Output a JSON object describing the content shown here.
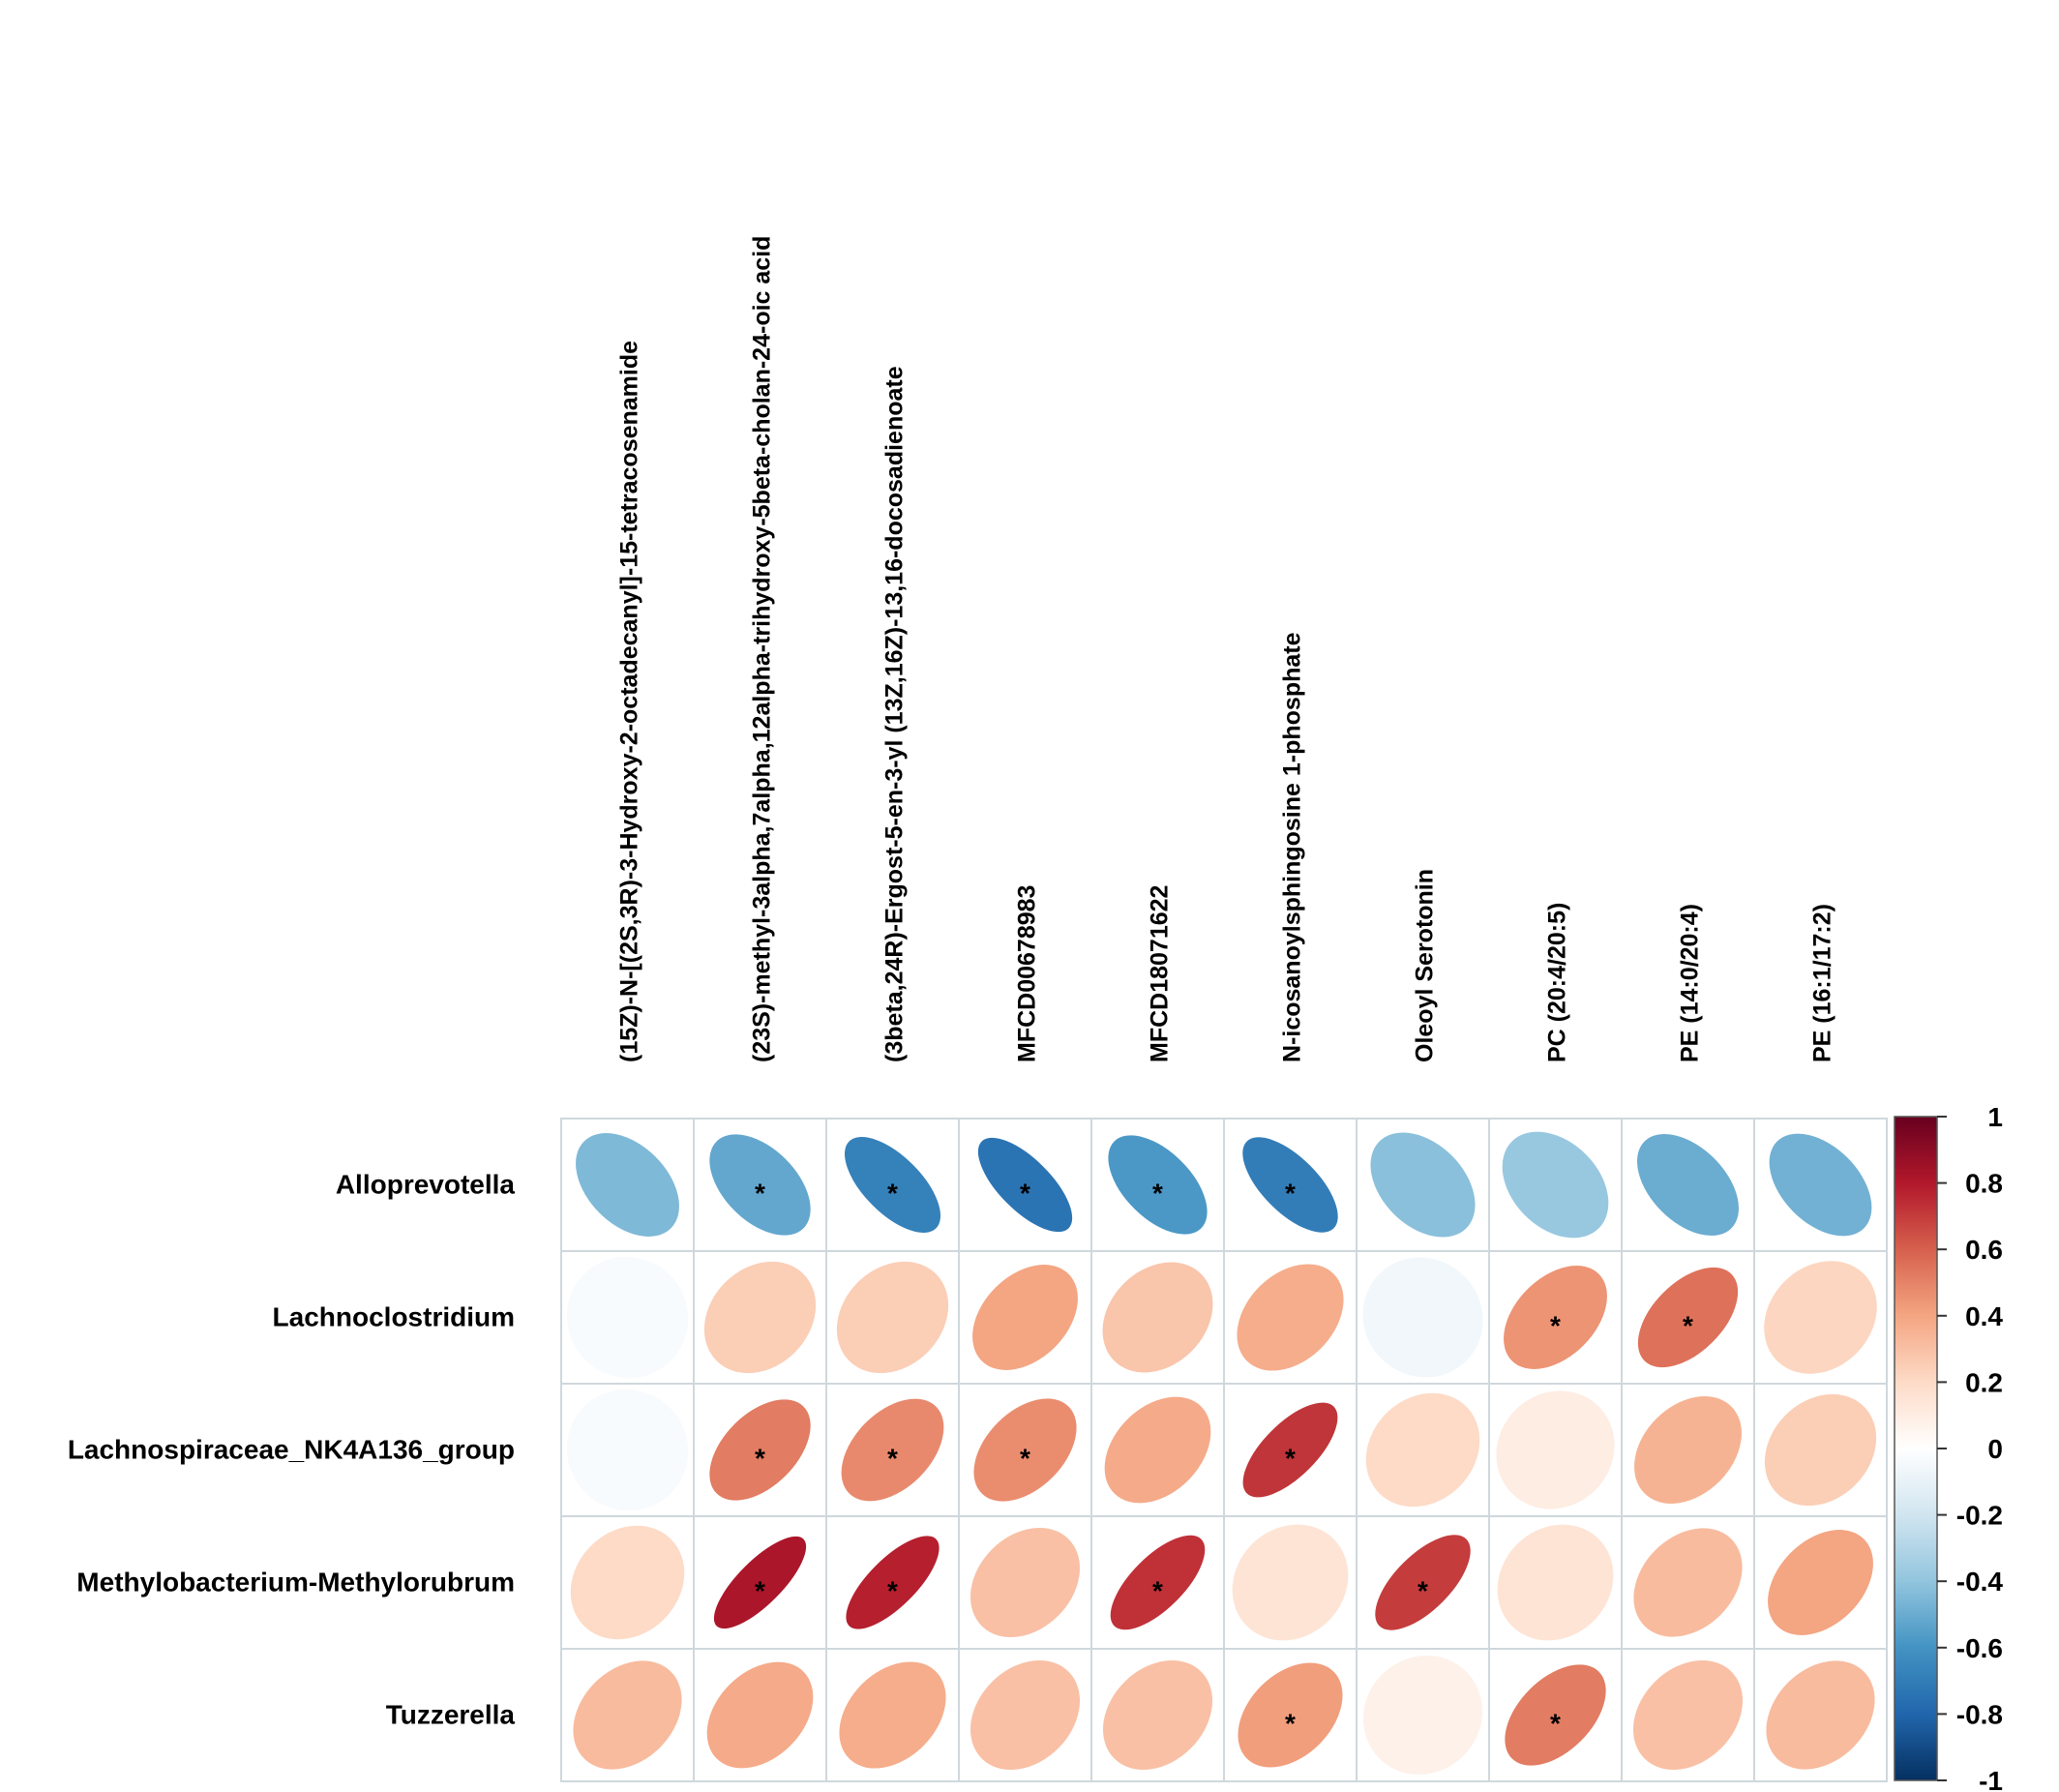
{
  "chart_data": {
    "type": "heatmap",
    "style": "correlation-ellipse",
    "columns": [
      "(15Z)-N-[(2S,3R)-3-Hydroxy-2-octadecanyl]-15-tetracosenamide",
      "(23S)-methyl-3alpha,7alpha,12alpha-trihydroxy-5beta-cholan-24-oic acid",
      "(3beta,24R)-Ergost-5-en-3-yl (13Z,16Z)-13,16-docosadienoate",
      "MFCD00678983",
      "MFCD18071622",
      "N-icosanoylsphingosine 1-phosphate",
      "Oleoyl Serotonin",
      "PC (20:4/20:5)",
      "PE (14:0/20:4)",
      "PE (16:1/17:2)"
    ],
    "rows": [
      "Alloprevotella",
      "Lachnoclostridium",
      "Lachnospiraceae_NK4A136_group",
      "Methylobacterium-Methylorubrum",
      "Tuzzerella"
    ],
    "values": [
      [
        -0.45,
        -0.52,
        -0.68,
        -0.74,
        -0.58,
        -0.7,
        -0.42,
        -0.38,
        -0.5,
        -0.48
      ],
      [
        -0.03,
        0.25,
        0.25,
        0.4,
        0.28,
        0.37,
        -0.06,
        0.45,
        0.55,
        0.22
      ],
      [
        -0.03,
        0.52,
        0.48,
        0.47,
        0.38,
        0.72,
        0.2,
        0.1,
        0.35,
        0.25
      ],
      [
        0.2,
        0.82,
        0.78,
        0.3,
        0.73,
        0.15,
        0.7,
        0.15,
        0.32,
        0.4
      ],
      [
        0.32,
        0.38,
        0.37,
        0.3,
        0.3,
        0.42,
        0.08,
        0.52,
        0.3,
        0.32
      ]
    ],
    "significant": [
      [
        false,
        true,
        true,
        true,
        true,
        true,
        false,
        false,
        false,
        false
      ],
      [
        false,
        false,
        false,
        false,
        false,
        false,
        false,
        true,
        true,
        false
      ],
      [
        false,
        true,
        true,
        true,
        false,
        true,
        false,
        false,
        false,
        false
      ],
      [
        false,
        true,
        true,
        false,
        true,
        false,
        true,
        false,
        false,
        false
      ],
      [
        false,
        false,
        false,
        false,
        false,
        true,
        false,
        true,
        false,
        false
      ]
    ],
    "significance_marker": "*",
    "colorbar": {
      "range": [
        -1,
        1
      ],
      "ticks": [
        "1",
        "0.8",
        "0.6",
        "0.4",
        "0.2",
        "0",
        "-0.2",
        "-0.4",
        "-0.6",
        "-0.8",
        "-1"
      ],
      "colors": [
        "#053061",
        "#2166AC",
        "#4393C3",
        "#92C5DE",
        "#D1E5F0",
        "#FFFFFF",
        "#FDDBC7",
        "#F4A582",
        "#D6604D",
        "#B2182B",
        "#67001F"
      ],
      "placement": "right"
    },
    "grid": true
  }
}
